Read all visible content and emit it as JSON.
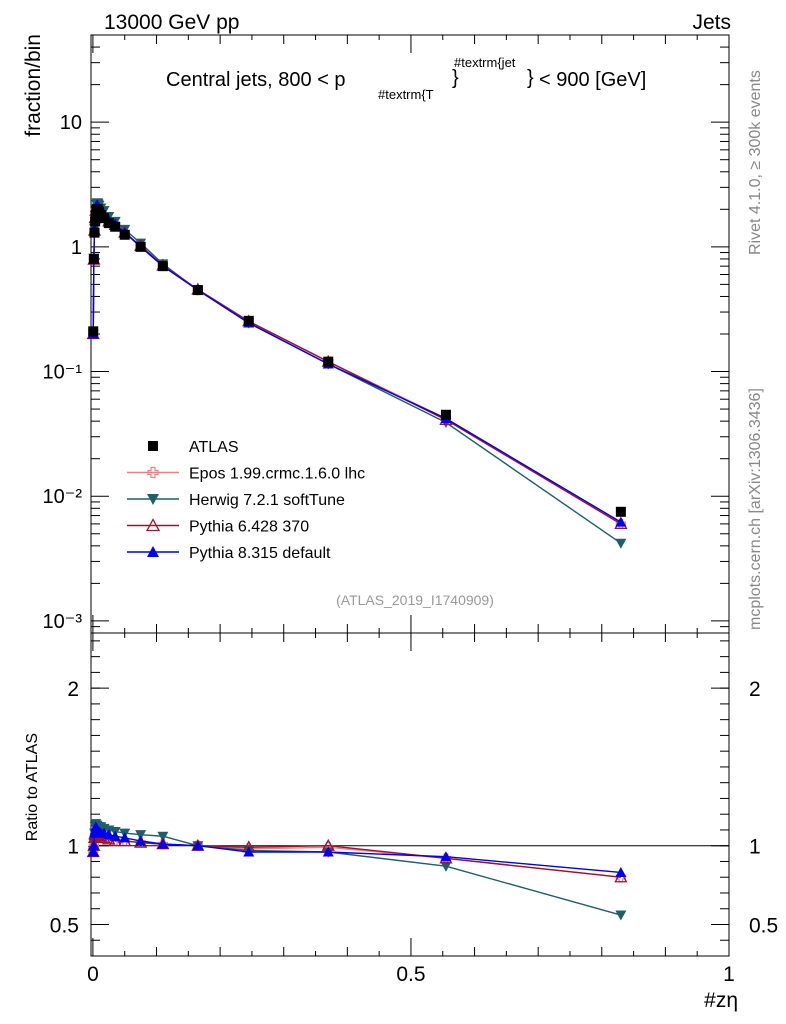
{
  "header": {
    "energy_label": "13000 GeV pp",
    "category_label": "Jets"
  },
  "side_labels": {
    "rivet": "Rivet 4.1.0, ≥ 300k events",
    "mcplots": "mcplots.cern.ch [arXiv:1306.3436]"
  },
  "watermark": "(ATLAS_2019_I1740909)",
  "chart_data": [
    {
      "type": "line",
      "panel": "main",
      "title_parts": {
        "before": "Central jets, 800 < p",
        "sub": "#textrm{T",
        "sup": "#textrm{jet",
        "after": "< 900 [GeV]"
      },
      "ylabel": "fraction/bin",
      "yscale": "log",
      "ylim": [
        0.0008,
        50
      ],
      "xlim": [
        -0.003,
        1.0
      ],
      "y_ticks": [
        {
          "value": 10,
          "label": "10"
        },
        {
          "value": 1,
          "label": "1"
        },
        {
          "value": 0.1,
          "label": "10⁻¹"
        },
        {
          "value": 0.01,
          "label": "10⁻²"
        },
        {
          "value": 0.001,
          "label": "10⁻³"
        }
      ],
      "x": [
        0.0005,
        0.0015,
        0.0025,
        0.0035,
        0.0045,
        0.0055,
        0.0065,
        0.0075,
        0.0085,
        0.0095,
        0.0125,
        0.0175,
        0.025,
        0.035,
        0.05,
        0.075,
        0.11,
        0.165,
        0.245,
        0.37,
        0.555,
        0.83
      ],
      "series": [
        {
          "name": "ATLAS",
          "color": "#000000",
          "marker": "square",
          "values": [
            0.21,
            0.8,
            1.3,
            1.6,
            1.8,
            1.95,
            2.0,
            2.0,
            1.95,
            1.9,
            1.8,
            1.7,
            1.55,
            1.45,
            1.25,
            1.0,
            0.7,
            0.45,
            0.255,
            0.12,
            0.045,
            0.0075
          ]
        },
        {
          "name": "Epos 1.99.crmc.1.6.0 lhc",
          "color": "#f08080",
          "marker": "open-cross",
          "values": [
            0.2,
            0.8,
            1.35,
            1.7,
            1.95,
            2.05,
            2.1,
            2.08,
            2.02,
            1.97,
            1.88,
            1.75,
            1.6,
            1.5,
            1.3,
            1.01,
            0.71,
            0.45,
            0.252,
            0.12,
            0.042,
            0.006
          ]
        },
        {
          "name": "Herwig 7.2.1 softTune",
          "color": "#1e5f6a",
          "marker": "down-triangle",
          "values": [
            0.2,
            0.81,
            1.4,
            1.8,
            2.05,
            2.2,
            2.25,
            2.25,
            2.2,
            2.15,
            2.05,
            1.95,
            1.75,
            1.6,
            1.38,
            1.07,
            0.73,
            0.45,
            0.245,
            0.115,
            0.039,
            0.0042
          ]
        },
        {
          "name": "Pythia 6.428 370",
          "color": "#a01030",
          "marker": "open-up-triangle",
          "values": [
            0.2,
            0.79,
            1.35,
            1.7,
            1.95,
            2.08,
            2.12,
            2.1,
            2.05,
            2.0,
            1.92,
            1.8,
            1.6,
            1.5,
            1.3,
            1.02,
            0.71,
            0.455,
            0.253,
            0.12,
            0.041,
            0.006
          ]
        },
        {
          "name": "Pythia 8.315 default",
          "color": "#0000ee",
          "marker": "up-triangle",
          "values": [
            0.2,
            0.8,
            1.4,
            1.75,
            2.0,
            2.12,
            2.16,
            2.15,
            2.1,
            2.05,
            1.95,
            1.83,
            1.65,
            1.52,
            1.3,
            1.0,
            0.7,
            0.45,
            0.245,
            0.115,
            0.042,
            0.0062
          ]
        }
      ]
    },
    {
      "type": "line",
      "panel": "ratio",
      "ylabel": "Ratio to ATLAS",
      "xlabel": "#zη",
      "ylim": [
        0.3,
        2.35
      ],
      "xlim": [
        -0.003,
        1.0
      ],
      "y_ticks": [
        {
          "value": 2,
          "label": "2"
        },
        {
          "value": 1,
          "label": "1"
        },
        {
          "value": 0.5,
          "label": "0.5"
        }
      ],
      "x_ticks": [
        {
          "value": 0,
          "label": "0"
        },
        {
          "value": 0.5,
          "label": "0.5"
        },
        {
          "value": 1,
          "label": "1"
        }
      ],
      "reference_line": 1,
      "x": [
        0.0005,
        0.0015,
        0.0025,
        0.0035,
        0.0045,
        0.0055,
        0.0065,
        0.0075,
        0.0085,
        0.0095,
        0.0125,
        0.0175,
        0.025,
        0.035,
        0.05,
        0.075,
        0.11,
        0.165,
        0.245,
        0.37,
        0.555,
        0.83
      ],
      "series": [
        {
          "name": "Epos 1.99.crmc.1.6.0 lhc",
          "color": "#f08080",
          "marker": "open-cross",
          "values": [
            0.97,
            1.0,
            1.04,
            1.06,
            1.08,
            1.07,
            1.06,
            1.05,
            1.05,
            1.05,
            1.05,
            1.04,
            1.04,
            1.03,
            1.03,
            1.02,
            1.01,
            1.0,
            0.98,
            0.99,
            0.92,
            0.8
          ]
        },
        {
          "name": "Herwig 7.2.1 softTune",
          "color": "#1e5f6a",
          "marker": "down-triangle",
          "values": [
            0.97,
            1.02,
            1.08,
            1.12,
            1.14,
            1.13,
            1.13,
            1.12,
            1.12,
            1.12,
            1.12,
            1.11,
            1.1,
            1.09,
            1.08,
            1.07,
            1.06,
            1.0,
            0.97,
            0.96,
            0.87,
            0.56
          ]
        },
        {
          "name": "Pythia 6.428 370",
          "color": "#a01030",
          "marker": "open-up-triangle",
          "values": [
            0.96,
            1.0,
            1.05,
            1.07,
            1.09,
            1.08,
            1.07,
            1.06,
            1.06,
            1.06,
            1.06,
            1.05,
            1.04,
            1.03,
            1.03,
            1.02,
            1.01,
            1.0,
            0.99,
            1.0,
            0.92,
            0.8
          ]
        },
        {
          "name": "Pythia 8.315 default",
          "color": "#0000ee",
          "marker": "up-triangle",
          "values": [
            0.96,
            1.0,
            1.08,
            1.1,
            1.12,
            1.11,
            1.1,
            1.09,
            1.09,
            1.09,
            1.08,
            1.08,
            1.07,
            1.06,
            1.05,
            1.03,
            1.01,
            1.0,
            0.96,
            0.96,
            0.93,
            0.83
          ]
        }
      ]
    }
  ]
}
